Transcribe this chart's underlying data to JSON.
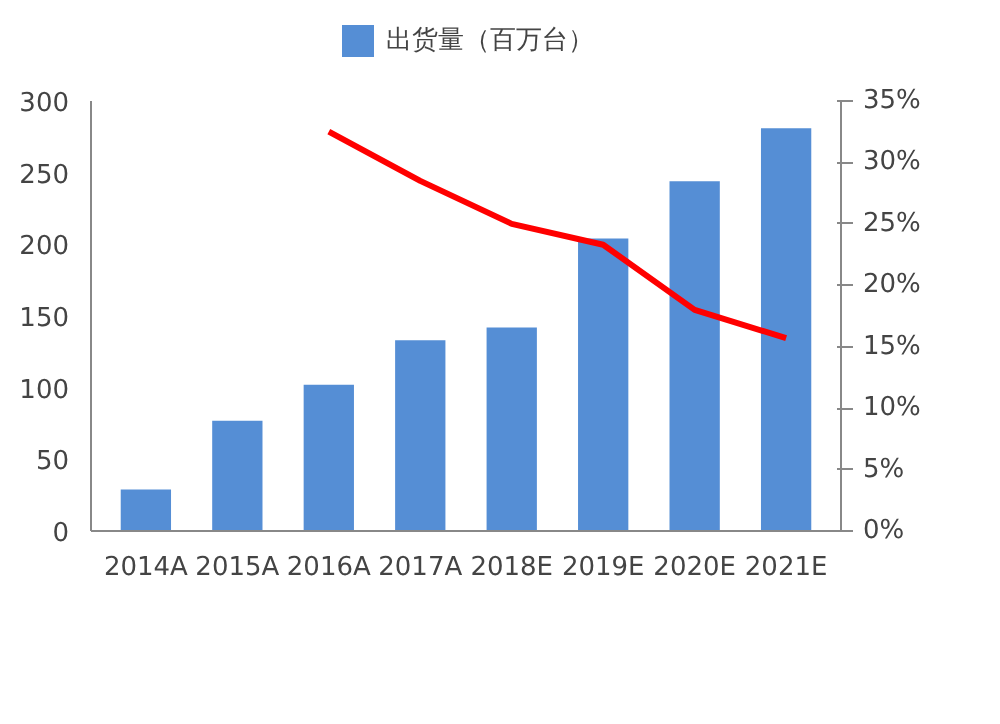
{
  "chart_data": {
    "type": "bar",
    "categories": [
      "2014A",
      "2015A",
      "2016A",
      "2017A",
      "2018E",
      "2019E",
      "2020E",
      "2021E"
    ],
    "series": [
      {
        "name": "出货量（百万台）",
        "color": "#558ed5",
        "values": [
          29,
          77,
          102,
          133,
          142,
          204,
          244,
          281
        ]
      },
      {
        "type": "line",
        "axis": "y2",
        "color": "#ff0000",
        "values": [
          null,
          null,
          32.5,
          28.5,
          25,
          23.3,
          18,
          15.7
        ]
      }
    ],
    "ylim": [
      0,
      300
    ],
    "yticks": [
      0,
      50,
      100,
      150,
      200,
      250,
      300
    ],
    "y2lim": [
      0,
      35
    ],
    "y2ticks": [
      {
        "value": 0,
        "label": "0%"
      },
      {
        "value": 5,
        "label": "5%"
      },
      {
        "value": 10,
        "label": "10%"
      },
      {
        "value": 15,
        "label": "15%"
      },
      {
        "value": 20,
        "label": "20%"
      },
      {
        "value": 25,
        "label": "25%"
      },
      {
        "value": 30,
        "label": "30%"
      },
      {
        "value": 35,
        "label": "35%"
      }
    ],
    "legend": "top",
    "grid": false
  }
}
